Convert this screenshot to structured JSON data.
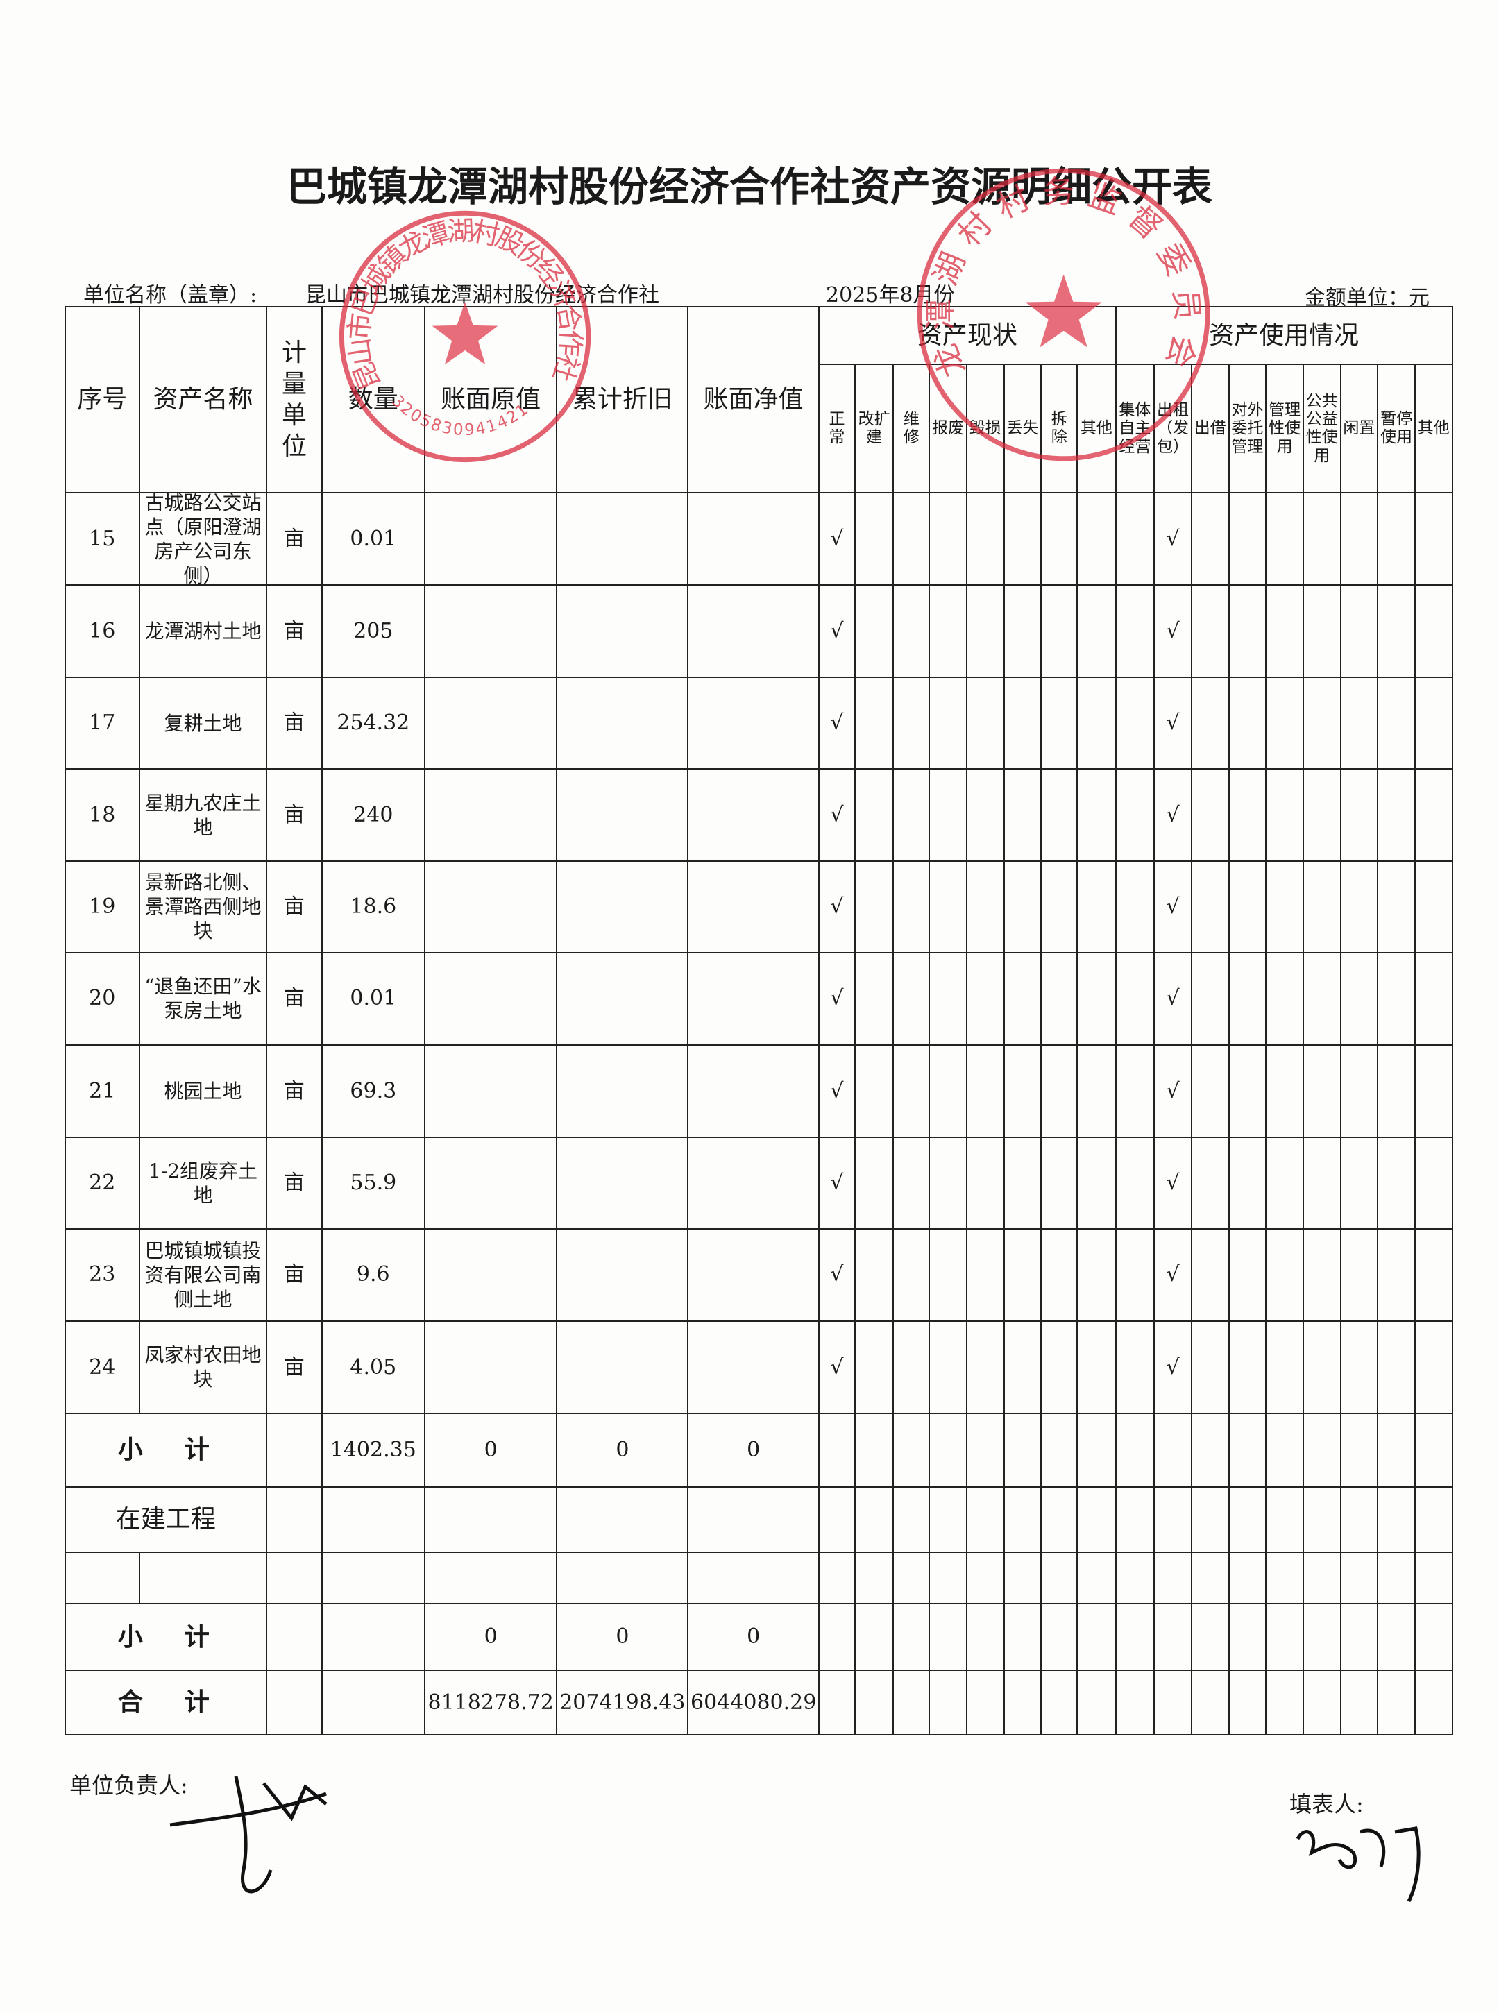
{
  "title": "巴城镇龙潭湖村股份经济合作社资产资源明细公开表",
  "meta": {
    "unit_label": "单位名称（盖章）:",
    "unit_name": "昆山市巴城镇龙潭湖村股份经济合作社",
    "period": "2025年8月份",
    "currency": "金额单位：元"
  },
  "table": {
    "headers": {
      "index": "序号",
      "name": "资产名称",
      "unit": "计量单位",
      "quantity": "数量",
      "original_value": "账面原值",
      "depreciation": "累计折旧",
      "net_value": "账面净值",
      "status_group": "资产现状",
      "status": [
        "正常",
        "改扩建",
        "维修",
        "报废",
        "毁损",
        "丢失",
        "拆除",
        "其他"
      ],
      "usage_group": "资产使用情况",
      "usage": [
        "集体自主经营",
        "出租（发包）",
        "出借",
        "对外委托管理",
        "管理性使用",
        "公共公益性使用",
        "闲置",
        "暂停使用",
        "其他"
      ]
    },
    "rows": [
      {
        "index": "15",
        "name": "古城路公交站点（原阳澄湖房产公司东侧）",
        "unit": "亩",
        "quantity": 0.01,
        "status_normal": "√",
        "usage_lease": "√"
      },
      {
        "index": "16",
        "name": "龙潭湖村土地",
        "unit": "亩",
        "quantity": 205,
        "status_normal": "√",
        "usage_lease": "√"
      },
      {
        "index": "17",
        "name": "复耕土地",
        "unit": "亩",
        "quantity": 254.32,
        "status_normal": "√",
        "usage_lease": "√"
      },
      {
        "index": "18",
        "name": "星期九农庄土地",
        "unit": "亩",
        "quantity": 240,
        "status_normal": "√",
        "usage_lease": "√"
      },
      {
        "index": "19",
        "name": "景新路北侧、景潭路西侧地块",
        "unit": "亩",
        "quantity": 18.6,
        "status_normal": "√",
        "usage_lease": "√"
      },
      {
        "index": "20",
        "name": "“退鱼还田”水泵房土地",
        "unit": "亩",
        "quantity": 0.01,
        "status_normal": "√",
        "usage_lease": "√"
      },
      {
        "index": "21",
        "name": "桃园土地",
        "unit": "亩",
        "quantity": 69.3,
        "status_normal": "√",
        "usage_lease": "√"
      },
      {
        "index": "22",
        "name": "1-2组废弃土地",
        "unit": "亩",
        "quantity": 55.9,
        "status_normal": "√",
        "usage_lease": "√"
      },
      {
        "index": "23",
        "name": "巴城镇城镇投资有限公司南侧土地",
        "unit": "亩",
        "quantity": 9.6,
        "status_normal": "√",
        "usage_lease": "√"
      },
      {
        "index": "24",
        "name": "凤家村农田地块",
        "unit": "亩",
        "quantity": 4.05,
        "status_normal": "√",
        "usage_lease": "√"
      }
    ],
    "subtotal_land": {
      "label": "小计",
      "quantity": 1402.35,
      "original_value": 0,
      "depreciation": 0,
      "net_value": 0
    },
    "construction_label": "在建工程",
    "subtotal_construction": {
      "label": "小计",
      "original_value": 0,
      "depreciation": 0,
      "net_value": 0
    },
    "total": {
      "label": "合计",
      "original_value": 8118278.72,
      "depreciation": 2074198.43,
      "net_value": 6044080.29
    }
  },
  "footer": {
    "leader_label": "单位负责人:",
    "preparer_label": "填表人:"
  },
  "stamps": {
    "cooperative": {
      "text": "昆山市巴城镇龙潭湖村股份经济合作社",
      "code": "3205830941421"
    },
    "supervision": {
      "text": "龙潭湖村村务监督委员会"
    }
  }
}
